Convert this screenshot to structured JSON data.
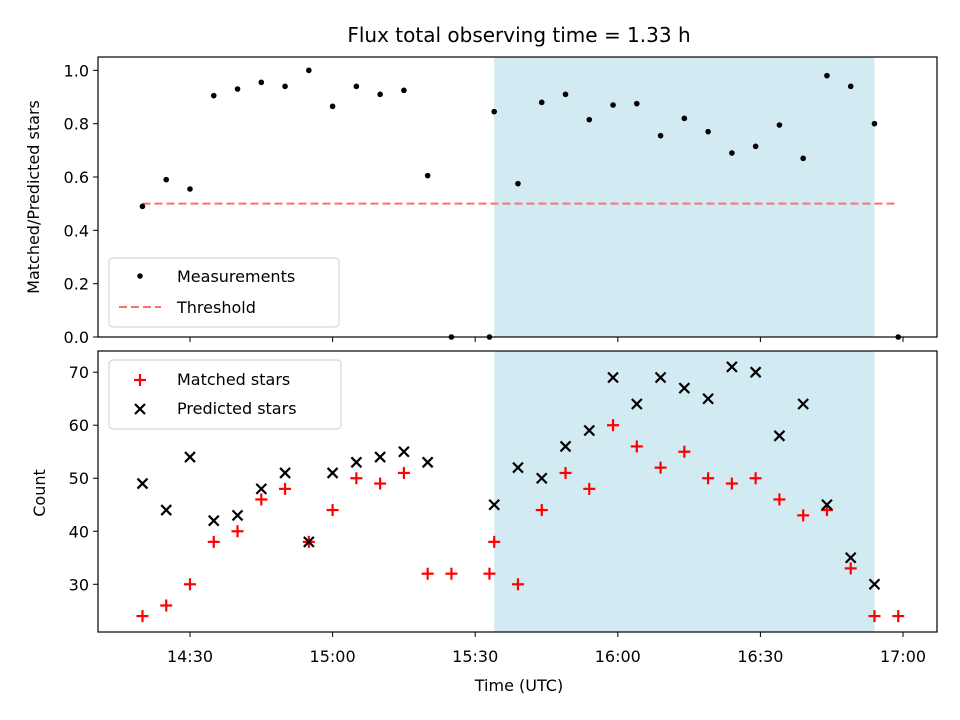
{
  "chart_data": [
    {
      "type": "scatter",
      "title": "Flux total observing time = 1.33 h",
      "xlabel": "",
      "ylabel": "Matched/Predicted stars",
      "ylim": [
        0,
        1.05
      ],
      "yticks": [
        "0.0",
        "0.2",
        "0.4",
        "0.6",
        "0.8",
        "1.0"
      ],
      "legend_position": "lower-left",
      "shaded_interval": [
        "15:34",
        "16:54"
      ],
      "shade_color": "#add8e6",
      "series": [
        {
          "name": "Measurements",
          "marker": "dot",
          "color": "#000000",
          "x": [
            "14:20",
            "14:25",
            "14:30",
            "14:35",
            "14:40",
            "14:45",
            "14:50",
            "14:55",
            "15:00",
            "15:05",
            "15:10",
            "15:15",
            "15:20",
            "15:25",
            "15:34",
            "15:39",
            "15:44",
            "15:49",
            "15:54",
            "15:59",
            "16:04",
            "16:09",
            "16:14",
            "16:19",
            "16:24",
            "16:29",
            "16:34",
            "16:39",
            "16:44",
            "16:49",
            "16:54",
            "16:59"
          ],
          "y": [
            0.49,
            0.59,
            0.555,
            0.905,
            0.93,
            0.955,
            0.94,
            1.0,
            0.865,
            0.94,
            0.91,
            0.925,
            0.605,
            0.0,
            0.845,
            0.575,
            0.88,
            0.91,
            0.815,
            0.87,
            0.875,
            0.755,
            0.82,
            0.77,
            0.69,
            0.715,
            0.795,
            0.67,
            0.98,
            0.94,
            0.8,
            0.0
          ],
          "extra_point": {
            "x": "15:33",
            "y": 0.0
          }
        },
        {
          "name": "Threshold",
          "style": "dashed",
          "color": "#ff6f6f",
          "x": [
            "14:20",
            "16:59"
          ],
          "y": [
            0.5,
            0.5
          ]
        }
      ]
    },
    {
      "type": "scatter",
      "title": "",
      "xlabel": "Time (UTC)",
      "ylabel": "Count",
      "ylim": [
        21,
        74
      ],
      "yticks": [
        "30",
        "40",
        "50",
        "60",
        "70"
      ],
      "xticks": [
        "14:30",
        "15:00",
        "15:30",
        "16:00",
        "16:30",
        "17:00"
      ],
      "legend_position": "upper-left",
      "shaded_interval": [
        "15:34",
        "16:54"
      ],
      "series": [
        {
          "name": "Matched stars",
          "marker": "plus",
          "color": "#ff0000",
          "x": [
            "14:20",
            "14:25",
            "14:30",
            "14:35",
            "14:40",
            "14:45",
            "14:50",
            "14:55",
            "15:00",
            "15:05",
            "15:10",
            "15:15",
            "15:20",
            "15:25",
            "15:33",
            "15:34",
            "15:39",
            "15:44",
            "15:49",
            "15:54",
            "15:59",
            "16:04",
            "16:09",
            "16:14",
            "16:19",
            "16:24",
            "16:29",
            "16:34",
            "16:39",
            "16:44",
            "16:49",
            "16:54",
            "16:59"
          ],
          "y": [
            24,
            26,
            30,
            38,
            40,
            46,
            48,
            38,
            44,
            50,
            49,
            51,
            32,
            32,
            32,
            38,
            30,
            44,
            51,
            48,
            60,
            56,
            52,
            55,
            50,
            49,
            50,
            46,
            43,
            44,
            33,
            24,
            24
          ]
        },
        {
          "name": "Predicted stars",
          "marker": "x",
          "color": "#000000",
          "x": [
            "14:20",
            "14:25",
            "14:30",
            "14:35",
            "14:40",
            "14:45",
            "14:50",
            "14:55",
            "15:00",
            "15:05",
            "15:10",
            "15:15",
            "15:20",
            "15:34",
            "15:39",
            "15:44",
            "15:49",
            "15:54",
            "15:59",
            "16:04",
            "16:09",
            "16:14",
            "16:19",
            "16:24",
            "16:29",
            "16:34",
            "16:39",
            "16:44",
            "16:49",
            "16:54"
          ],
          "y": [
            49,
            44,
            54,
            42,
            43,
            48,
            51,
            38,
            51,
            53,
            54,
            55,
            53,
            45,
            52,
            50,
            56,
            59,
            69,
            64,
            69,
            67,
            65,
            71,
            70,
            58,
            64,
            45,
            35,
            30
          ]
        }
      ]
    }
  ]
}
